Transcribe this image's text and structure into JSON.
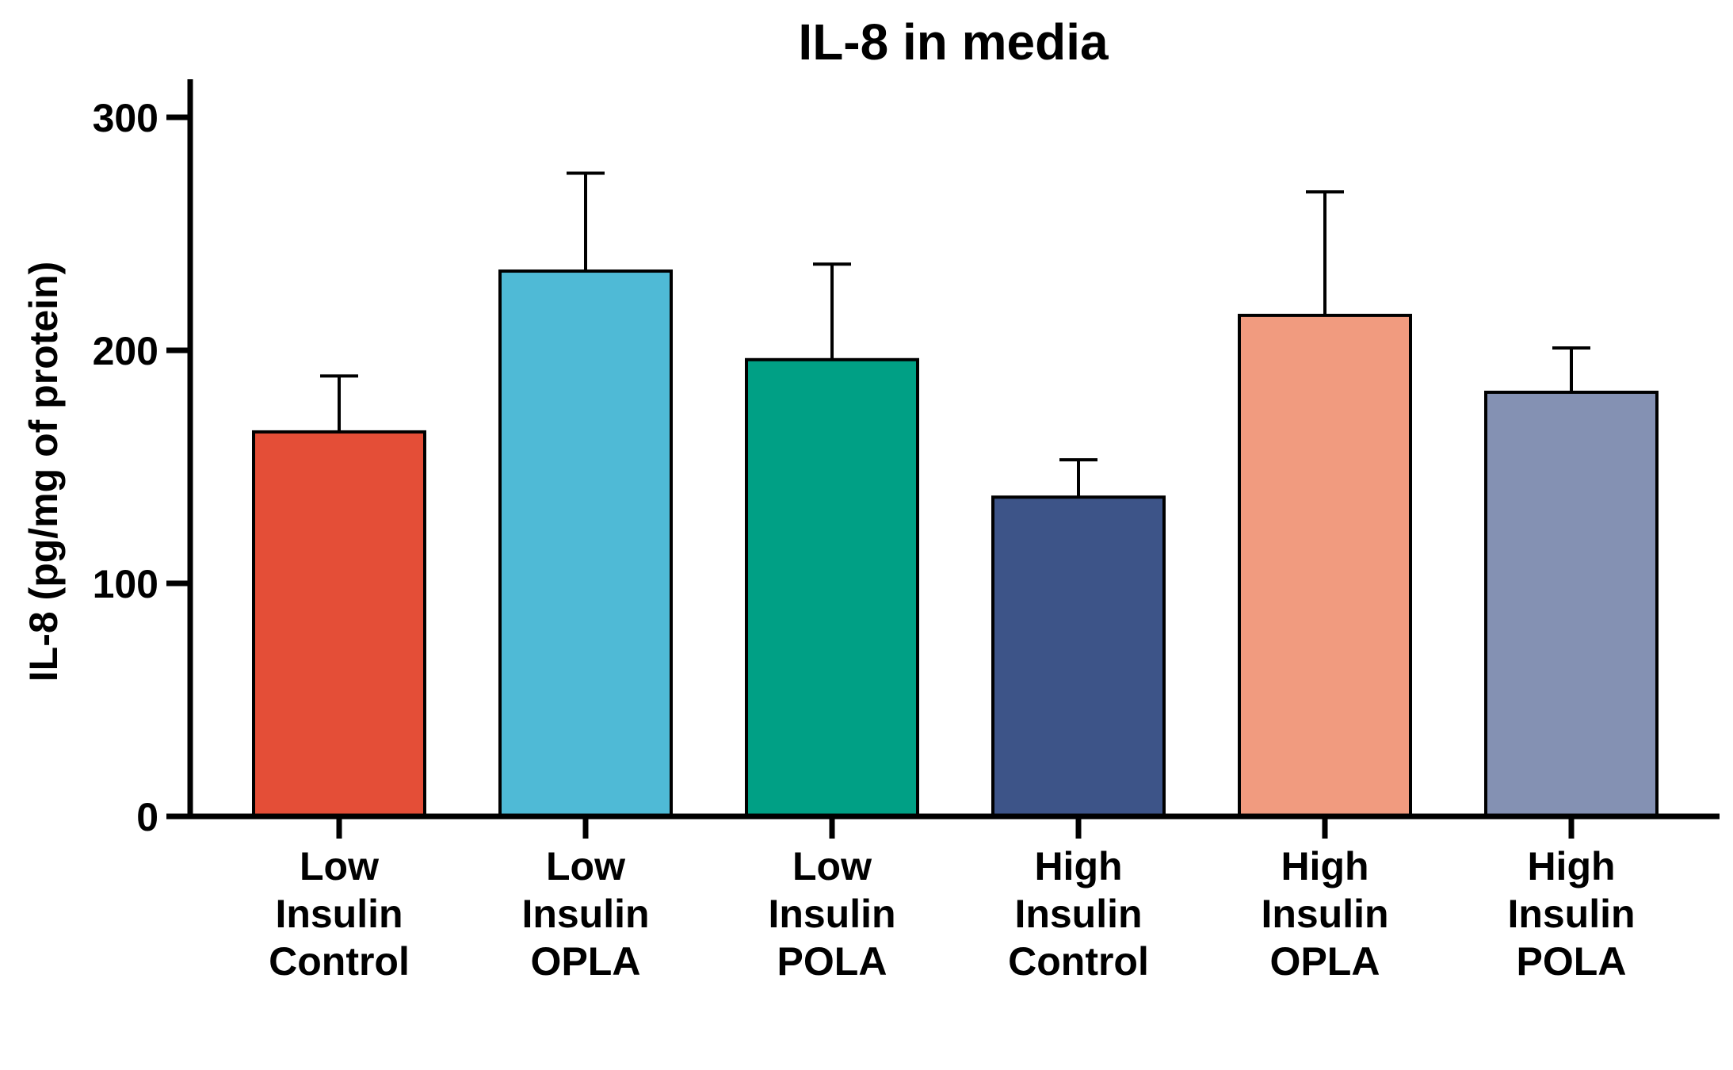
{
  "chart_data": {
    "type": "bar",
    "title": "IL-8 in media",
    "xlabel": "",
    "ylabel": "IL-8 (pg/mg of protein)",
    "ylim": [
      0,
      300
    ],
    "yticks": [
      0,
      100,
      200,
      300
    ],
    "grid": false,
    "categories": [
      [
        "Low",
        "Insulin",
        "Control"
      ],
      [
        "Low",
        "Insulin",
        "OPLA"
      ],
      [
        "Low",
        "Insulin",
        "POLA"
      ],
      [
        "High",
        "Insulin",
        "Control"
      ],
      [
        "High",
        "Insulin",
        "OPLA"
      ],
      [
        "High",
        "Insulin",
        "POLA"
      ]
    ],
    "values": [
      165,
      234,
      196,
      137,
      215,
      182
    ],
    "error_upper": [
      24,
      42,
      41,
      16,
      53,
      19
    ],
    "colors": [
      "#e44e37",
      "#4fbad6",
      "#00a085",
      "#3d5488",
      "#f19b7f",
      "#8491b3"
    ]
  }
}
